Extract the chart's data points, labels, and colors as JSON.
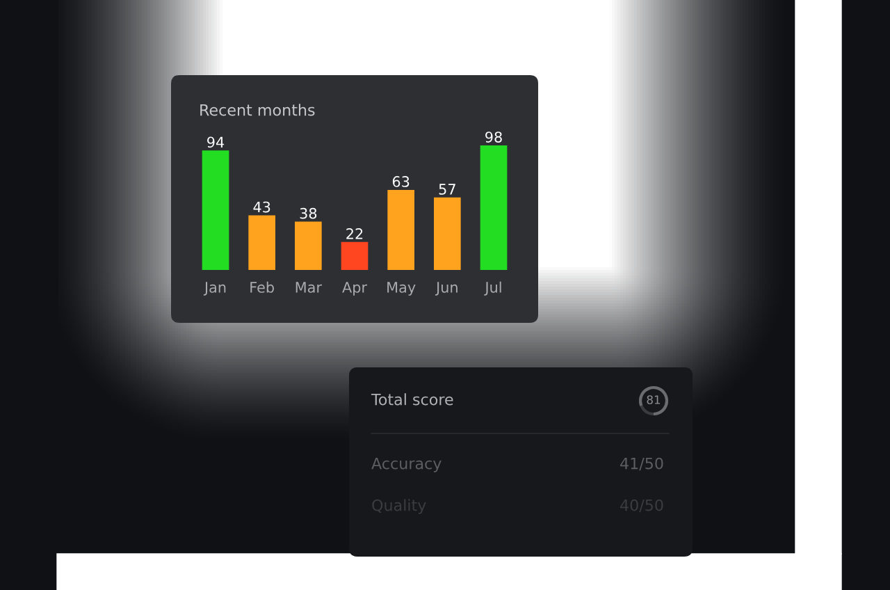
{
  "chart_data": [
    {
      "type": "bar",
      "title": "Recent months",
      "categories": [
        "Jan",
        "Feb",
        "Mar",
        "Apr",
        "May",
        "Jun",
        "Jul"
      ],
      "values": [
        94,
        43,
        38,
        22,
        63,
        57,
        98
      ],
      "colors": [
        "#22dd22",
        "#ffa31f",
        "#ffa31f",
        "#ff4620",
        "#ffa31f",
        "#ffa31f",
        "#22dd22"
      ],
      "data_labels": true,
      "tick_labels": "x",
      "grid": false,
      "legend": false
    },
    {
      "type": "other",
      "title": "Total score",
      "annotations": [
        "81",
        "Accuracy",
        "41/50",
        "Quality",
        "40/50"
      ]
    }
  ]
}
